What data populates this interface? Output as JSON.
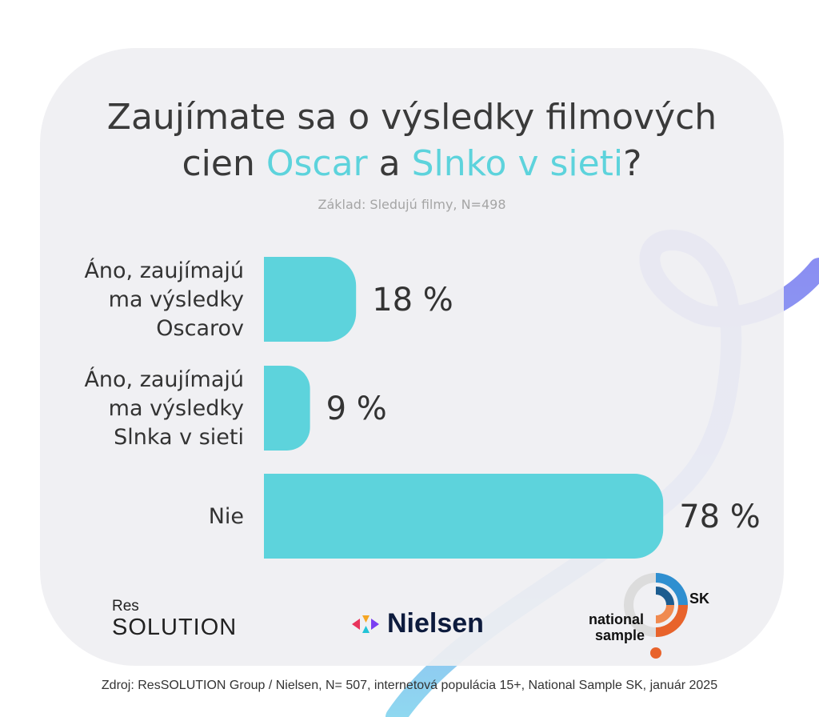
{
  "title": {
    "part1": "Zaujímate sa o výsledky filmových",
    "part2": "cien ",
    "highlight1": "Oscar",
    "part3": " a ",
    "highlight2": "Slnko v sieti",
    "part4": "?"
  },
  "subtitle": "Základ: Sledujú filmy, N=498",
  "chart_data": {
    "type": "bar",
    "orientation": "horizontal",
    "categories": [
      [
        "Áno, zaujímajú",
        "ma výsledky",
        "Oscarov"
      ],
      [
        "Áno, zaujímajú",
        "ma výsledky",
        "Slnka v sieti"
      ],
      [
        "Nie"
      ]
    ],
    "values": [
      18,
      9,
      78
    ],
    "value_labels": [
      "18 %",
      "9 %",
      "78 %"
    ],
    "bar_color": "#5dd3dc",
    "unit": "%"
  },
  "logos": {
    "res_small": "Res",
    "res_big": "SOLUTION",
    "nielsen": "Nielsen",
    "ns_sk": "SK",
    "ns_line1": "national",
    "ns_line2": "sample"
  },
  "source": "Zdroj: ResSOLUTION Group / Nielsen, N= 507, internetová populácia 15+, National Sample SK, január 2025",
  "colors": {
    "accent": "#5dd3dc",
    "ribbon_top": "#8a8cf2",
    "ribbon_bottom": "#8fd8f0",
    "card": "#efeff2"
  }
}
